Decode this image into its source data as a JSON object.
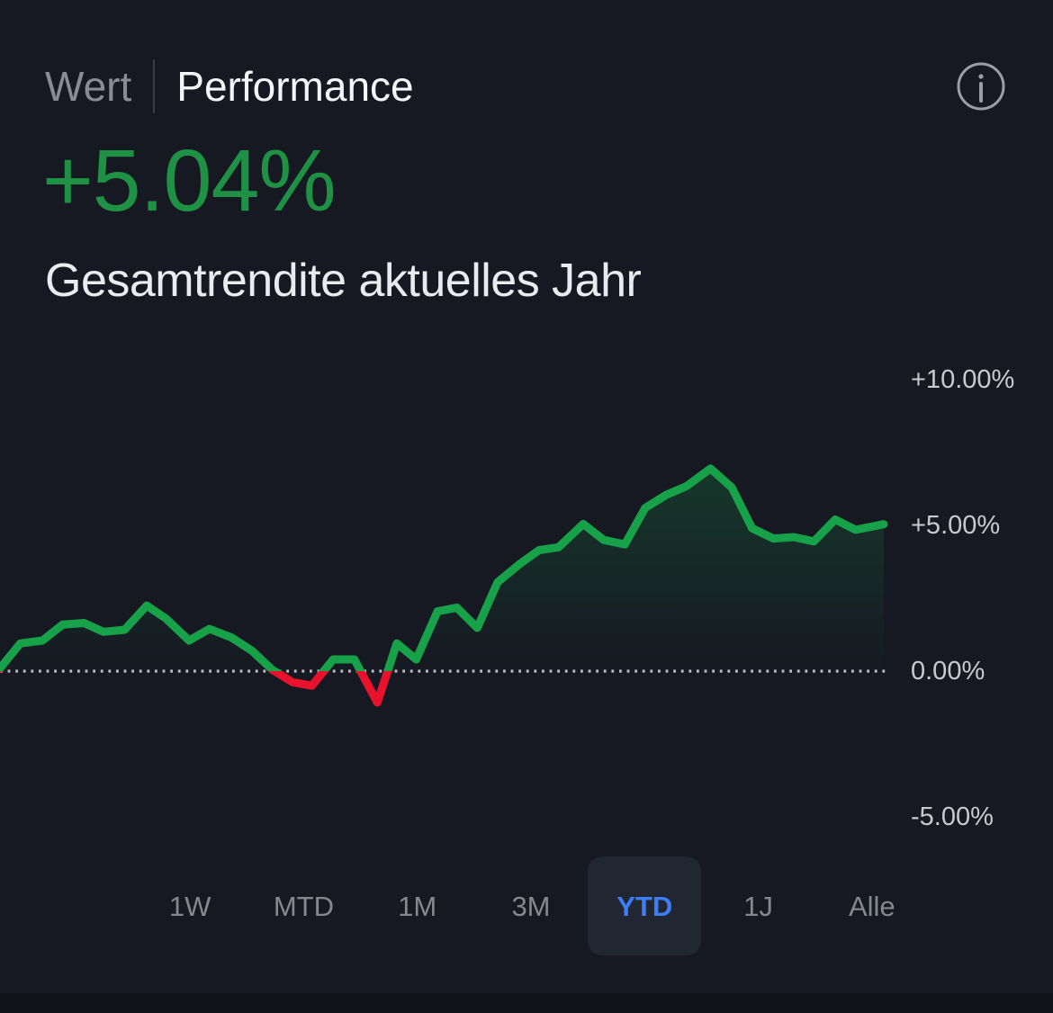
{
  "header": {
    "tabs": [
      {
        "label": "Wert",
        "active": false
      },
      {
        "label": "Performance",
        "active": true
      }
    ]
  },
  "summary": {
    "value": "+5.04%",
    "value_color": "#1f9145",
    "caption": "Gesamtrendite aktuelles Jahr"
  },
  "chart_data": {
    "type": "line",
    "unit": "percent",
    "x_axis": "time (year to date, unlabeled)",
    "y_ticks": [
      {
        "label": "+10.00%",
        "value": 10
      },
      {
        "label": "+5.00%",
        "value": 5
      },
      {
        "label": "0.00%",
        "value": 0
      },
      {
        "label": "-5.00%",
        "value": -5
      }
    ],
    "ylim": [
      -7.3,
      11.3
    ],
    "legend": "none",
    "grid": "off",
    "zero_line_style": "dotted",
    "axis_side": "right",
    "end_value_pct": 5.04,
    "series": [
      {
        "name": "performance-pct",
        "points": [
          [
            0.0,
            0.1
          ],
          [
            0.023,
            0.95
          ],
          [
            0.048,
            1.05
          ],
          [
            0.071,
            1.6
          ],
          [
            0.095,
            1.65
          ],
          [
            0.117,
            1.35
          ],
          [
            0.141,
            1.42
          ],
          [
            0.166,
            2.25
          ],
          [
            0.188,
            1.8
          ],
          [
            0.214,
            1.05
          ],
          [
            0.237,
            1.45
          ],
          [
            0.262,
            1.15
          ],
          [
            0.285,
            0.7
          ],
          [
            0.308,
            0.05
          ],
          [
            0.331,
            -0.38
          ],
          [
            0.353,
            -0.5
          ],
          [
            0.377,
            0.4
          ],
          [
            0.401,
            0.4
          ],
          [
            0.427,
            -1.08
          ],
          [
            0.449,
            0.95
          ],
          [
            0.471,
            0.4
          ],
          [
            0.495,
            2.05
          ],
          [
            0.517,
            2.18
          ],
          [
            0.54,
            1.48
          ],
          [
            0.563,
            3.05
          ],
          [
            0.587,
            3.65
          ],
          [
            0.61,
            4.15
          ],
          [
            0.632,
            4.25
          ],
          [
            0.66,
            5.05
          ],
          [
            0.683,
            4.5
          ],
          [
            0.707,
            4.35
          ],
          [
            0.73,
            5.6
          ],
          [
            0.754,
            6.05
          ],
          [
            0.777,
            6.35
          ],
          [
            0.804,
            6.95
          ],
          [
            0.828,
            6.3
          ],
          [
            0.851,
            4.9
          ],
          [
            0.875,
            4.55
          ],
          [
            0.898,
            4.6
          ],
          [
            0.921,
            4.45
          ],
          [
            0.945,
            5.2
          ],
          [
            0.968,
            4.85
          ],
          [
            1.0,
            5.04
          ]
        ]
      }
    ],
    "colors": {
      "positive": "#17a24a",
      "negative": "#e8122d",
      "zero_line": "#b9bcc3",
      "tick_text": "#c7cad0"
    }
  },
  "range_selector": {
    "selected_color": "#3d7ef6",
    "options": [
      {
        "label": "1W",
        "selected": false
      },
      {
        "label": "MTD",
        "selected": false
      },
      {
        "label": "1M",
        "selected": false
      },
      {
        "label": "3M",
        "selected": false
      },
      {
        "label": "YTD",
        "selected": true
      },
      {
        "label": "1J",
        "selected": false
      },
      {
        "label": "Alle",
        "selected": false
      }
    ]
  }
}
